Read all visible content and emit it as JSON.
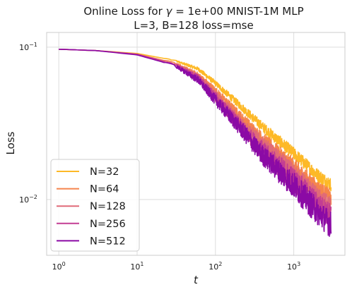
{
  "chart_data": {
    "type": "line",
    "title_line1_prefix": "Online Loss for ",
    "title_line1_gamma": "γ",
    "title_line1_suffix": " = 1e+00 MNIST-1M MLP",
    "title_line2": "L=3, B=128 loss=mse",
    "xlabel": "t",
    "ylabel": "Loss",
    "x_scale": "log",
    "y_scale": "log",
    "xlim": [
      0.7,
      4500
    ],
    "ylim": [
      0.0043,
      0.125
    ],
    "grid": true,
    "legend_position": "lower-left",
    "x_ticks": [
      {
        "value": 1,
        "base": "10",
        "exp": "0"
      },
      {
        "value": 10,
        "base": "10",
        "exp": "1"
      },
      {
        "value": 100,
        "base": "10",
        "exp": "2"
      },
      {
        "value": 1000,
        "base": "10",
        "exp": "3"
      }
    ],
    "y_ticks": [
      {
        "value": 0.1,
        "base": "10",
        "exp": "−1"
      },
      {
        "value": 0.01,
        "base": "10",
        "exp": "−2"
      }
    ],
    "series": [
      {
        "name": "N=32",
        "color": "#fdb927",
        "noise": 0.1,
        "points": [
          [
            1,
            0.097
          ],
          [
            3,
            0.095
          ],
          [
            10,
            0.091
          ],
          [
            30,
            0.082
          ],
          [
            60,
            0.072
          ],
          [
            100,
            0.058
          ],
          [
            200,
            0.042
          ],
          [
            400,
            0.03
          ],
          [
            1000,
            0.02
          ],
          [
            2000,
            0.0145
          ],
          [
            3000,
            0.0125
          ]
        ]
      },
      {
        "name": "N=64",
        "color": "#f5844c",
        "noise": 0.13,
        "points": [
          [
            1,
            0.097
          ],
          [
            3,
            0.095
          ],
          [
            10,
            0.09
          ],
          [
            30,
            0.079
          ],
          [
            60,
            0.066
          ],
          [
            100,
            0.052
          ],
          [
            200,
            0.036
          ],
          [
            400,
            0.025
          ],
          [
            1000,
            0.0165
          ],
          [
            2000,
            0.0118
          ],
          [
            3000,
            0.0102
          ]
        ]
      },
      {
        "name": "N=128",
        "color": "#e06a78",
        "noise": 0.16,
        "points": [
          [
            1,
            0.097
          ],
          [
            3,
            0.095
          ],
          [
            10,
            0.09
          ],
          [
            30,
            0.078
          ],
          [
            60,
            0.064
          ],
          [
            100,
            0.049
          ],
          [
            200,
            0.033
          ],
          [
            400,
            0.023
          ],
          [
            1000,
            0.0148
          ],
          [
            2000,
            0.0102
          ],
          [
            3000,
            0.0088
          ]
        ]
      },
      {
        "name": "N=256",
        "color": "#c33d93",
        "noise": 0.18,
        "points": [
          [
            1,
            0.097
          ],
          [
            3,
            0.095
          ],
          [
            10,
            0.09
          ],
          [
            30,
            0.077
          ],
          [
            60,
            0.063
          ],
          [
            100,
            0.047
          ],
          [
            200,
            0.031
          ],
          [
            400,
            0.021
          ],
          [
            1000,
            0.0135
          ],
          [
            2000,
            0.0093
          ],
          [
            3000,
            0.0078
          ]
        ]
      },
      {
        "name": "N=512",
        "color": "#8b0aa5",
        "noise": 0.2,
        "points": [
          [
            1,
            0.097
          ],
          [
            3,
            0.095
          ],
          [
            10,
            0.089
          ],
          [
            30,
            0.076
          ],
          [
            60,
            0.061
          ],
          [
            100,
            0.045
          ],
          [
            200,
            0.03
          ],
          [
            400,
            0.0195
          ],
          [
            1000,
            0.0124
          ],
          [
            2000,
            0.0083
          ],
          [
            3000,
            0.0068
          ]
        ]
      }
    ]
  }
}
